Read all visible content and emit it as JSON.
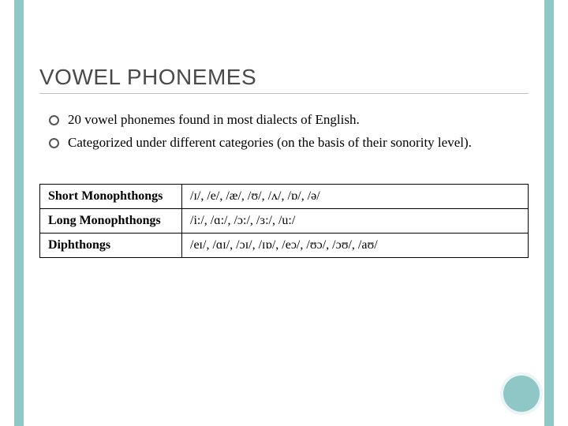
{
  "colors": {
    "accent": "#8fc7c7",
    "title": "#4a4a4a",
    "underline": "#bfbfbf",
    "text": "#000000",
    "table_border": "#000000",
    "background": "#ffffff"
  },
  "title": "VOWEL PHONEMES",
  "bullets": [
    "20 vowel phonemes found in most dialects of English.",
    "Categorized under different categories (on the basis of their sonority level)."
  ],
  "table": {
    "rows": [
      {
        "category": "Short Monophthongs",
        "values": "/ɪ/, /e/, /æ/, /ʊ/, /ʌ/, /ɒ/, /ə/"
      },
      {
        "category": "Long Monophthongs",
        "values": "/i:/, /ɑ:/, /ɔ:/, /ɜ:/, /u:/"
      },
      {
        "category": "Diphthongs",
        "values": "/eɪ/, /ɑɪ/, /ɔɪ/, /ɪɒ/, /eɔ/, /ʊɔ/, /ɔʊ/, /aʊ/"
      }
    ]
  }
}
